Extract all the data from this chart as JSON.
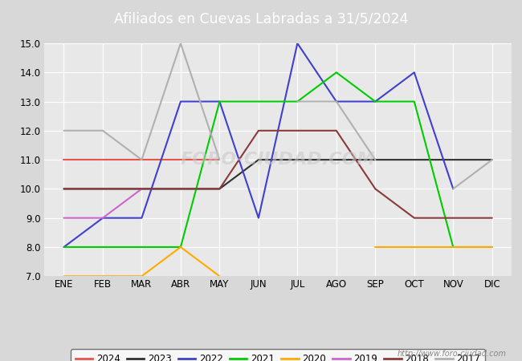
{
  "title": "Afiliados en Cuevas Labradas a 31/5/2024",
  "title_bg": "#5b7fc4",
  "months": [
    "ENE",
    "FEB",
    "MAR",
    "ABR",
    "MAY",
    "JUN",
    "JUL",
    "AGO",
    "SEP",
    "OCT",
    "NOV",
    "DIC"
  ],
  "ylim": [
    7.0,
    15.0
  ],
  "yticks": [
    7.0,
    8.0,
    9.0,
    10.0,
    11.0,
    12.0,
    13.0,
    14.0,
    15.0
  ],
  "series": {
    "2024": {
      "color": "#e8534a",
      "data": [
        11,
        11,
        11,
        11,
        11,
        null,
        null,
        null,
        null,
        null,
        null,
        null
      ]
    },
    "2023": {
      "color": "#303030",
      "data": [
        10,
        10,
        10,
        10,
        10,
        11,
        11,
        11,
        11,
        11,
        11,
        11
      ]
    },
    "2022": {
      "color": "#4040cc",
      "data": [
        8,
        9,
        9,
        13,
        13,
        9,
        15,
        13,
        13,
        14,
        10,
        null
      ]
    },
    "2021": {
      "color": "#00cc00",
      "data": [
        8,
        8,
        8,
        8,
        13,
        13,
        13,
        14,
        13,
        13,
        8,
        8
      ]
    },
    "2020": {
      "color": "#ffaa00",
      "data": [
        7,
        7,
        7,
        8,
        7,
        null,
        null,
        null,
        8,
        8,
        8,
        8
      ]
    },
    "2019": {
      "color": "#cc66cc",
      "data": [
        9,
        9,
        10,
        null,
        null,
        null,
        null,
        null,
        null,
        null,
        null,
        null
      ]
    },
    "2018": {
      "color": "#8b3a3a",
      "data": [
        10,
        10,
        10,
        10,
        10,
        12,
        12,
        12,
        10,
        9,
        9,
        9
      ]
    },
    "2017": {
      "color": "#b0b0b0",
      "data": [
        12,
        12,
        11,
        15,
        11,
        null,
        13,
        13,
        11,
        null,
        10,
        11
      ]
    }
  },
  "footer": "http://www.foro-ciudad.com",
  "outer_bg": "#d8d8d8",
  "plot_bg": "#e8e8e8",
  "chart_bg": "#ffffff"
}
